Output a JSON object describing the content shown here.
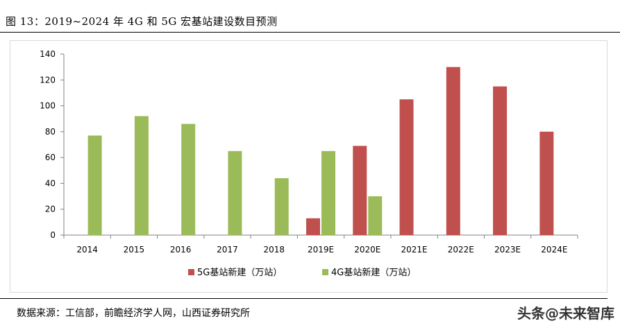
{
  "title": "图 13：2019~2024 年 4G 和 5G 宏基站建设数目预测",
  "source": "数据来源：工信部，前瞻经济学人网，山西证券研究所",
  "watermark": "头条@未来智库",
  "colors": {
    "series_5g": "#c0504d",
    "series_4g": "#9bbb59",
    "axis": "#808080"
  },
  "chart_data": {
    "type": "bar",
    "title": "",
    "xlabel": "",
    "ylabel": "",
    "categories": [
      "2014",
      "2015",
      "2016",
      "2017",
      "2018",
      "2019E",
      "2020E",
      "2021E",
      "2022E",
      "2023E",
      "2024E"
    ],
    "series": [
      {
        "name": "5G基站新建（万站）",
        "values": [
          0,
          0,
          0,
          0,
          0,
          13,
          69,
          105,
          130,
          115,
          80
        ]
      },
      {
        "name": "4G基站新建（万站）",
        "values": [
          77,
          92,
          86,
          65,
          44,
          65,
          30,
          0,
          0,
          0,
          0
        ]
      }
    ],
    "ylim": [
      0,
      140
    ],
    "yticks": [
      0,
      20,
      40,
      60,
      80,
      100,
      120,
      140
    ],
    "grid": false,
    "legend_position": "bottom"
  }
}
